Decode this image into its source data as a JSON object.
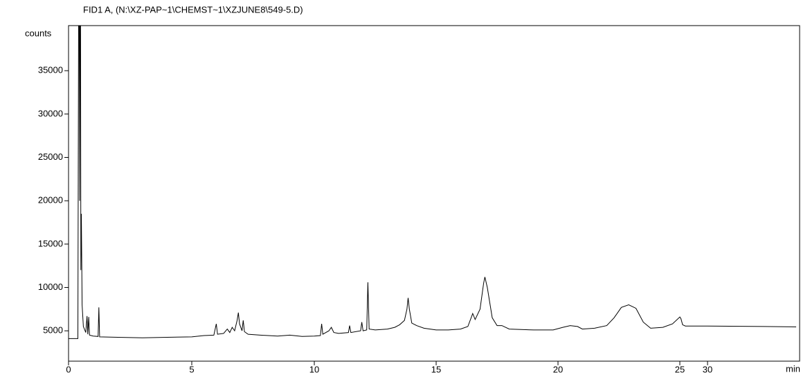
{
  "chart_data": {
    "type": "line",
    "title": "FID1 A,  (N:\\XZ-PAP~1\\CHEMST~1\\XZJUNE8\\549-5.D)",
    "y_label": "counts",
    "x_label": "min",
    "xlim": [
      0,
      46
    ],
    "xticks": [
      0,
      5,
      10,
      15,
      20,
      25,
      30
    ],
    "ylim": [
      1500,
      40200
    ],
    "yticks": [
      5000,
      10000,
      15000,
      20000,
      25000,
      30000,
      35000
    ],
    "color": "#000000",
    "x": [
      0,
      0.35,
      0.38,
      0.42,
      0.45,
      0.48,
      0.5,
      0.52,
      0.55,
      0.6,
      0.7,
      0.75,
      0.78,
      0.82,
      0.85,
      1.0,
      1.2,
      1.23,
      1.26,
      2,
      3,
      4,
      5,
      5.5,
      5.9,
      6.0,
      6.05,
      6.3,
      6.45,
      6.55,
      6.65,
      6.75,
      6.85,
      6.9,
      6.95,
      7.05,
      7.1,
      7.15,
      7.3,
      7.8,
      8.5,
      9,
      9.5,
      10,
      10.25,
      10.3,
      10.35,
      10.6,
      10.7,
      10.8,
      11,
      11.4,
      11.45,
      11.5,
      11.9,
      11.95,
      12.0,
      12.15,
      12.2,
      12.25,
      12.5,
      13,
      13.3,
      13.5,
      13.7,
      13.8,
      13.85,
      13.9,
      14.0,
      14.2,
      14.5,
      15,
      15.5,
      16,
      16.3,
      16.45,
      16.5,
      16.6,
      16.8,
      16.95,
      17.0,
      17.1,
      17.3,
      17.5,
      17.7,
      18,
      19,
      19.8,
      20.2,
      20.5,
      20.8,
      21,
      21.5,
      22,
      22.3,
      22.6,
      22.9,
      23.2,
      23.5,
      23.8,
      24.3,
      24.7,
      25.0,
      25.2,
      25.5,
      26,
      30,
      40,
      46
    ],
    "values": [
      4100,
      4100,
      4100,
      60000,
      20000,
      60000,
      12000,
      18500,
      8000,
      5500,
      4800,
      6700,
      4600,
      6600,
      4500,
      4400,
      4350,
      7700,
      4300,
      4250,
      4200,
      4250,
      4300,
      4450,
      4500,
      5800,
      4600,
      4700,
      5200,
      4800,
      5400,
      5000,
      6200,
      7100,
      5800,
      5000,
      6200,
      4900,
      4600,
      4500,
      4400,
      4500,
      4350,
      4400,
      4450,
      5800,
      4600,
      5000,
      5400,
      4800,
      4700,
      4800,
      5600,
      4800,
      5000,
      6000,
      5000,
      5100,
      10600,
      5200,
      5100,
      5200,
      5400,
      5700,
      6200,
      7500,
      8800,
      7500,
      5900,
      5600,
      5300,
      5100,
      5100,
      5200,
      5500,
      6600,
      7000,
      6300,
      7500,
      10500,
      11200,
      10000,
      6500,
      5600,
      5600,
      5200,
      5100,
      5100,
      5400,
      5600,
      5500,
      5200,
      5300,
      5600,
      6500,
      7700,
      8000,
      7600,
      6000,
      5300,
      5400,
      5800,
      6600,
      6400,
      5700,
      5550,
      5550,
      5500,
      5450
    ]
  }
}
